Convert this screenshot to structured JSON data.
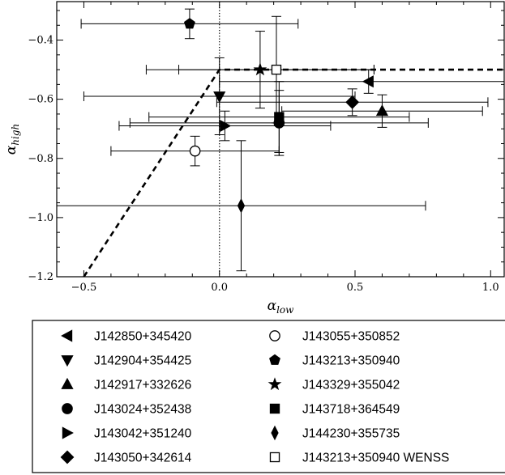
{
  "chart_data": {
    "type": "scatter",
    "title": "",
    "xlabel": "α_low",
    "ylabel": "α_high",
    "xlim": [
      -0.6,
      1.05
    ],
    "ylim": [
      -1.2,
      -0.27
    ],
    "x_ticks": [
      -0.5,
      0.0,
      0.5,
      1.0
    ],
    "x_tick_labels": [
      "−0.5",
      "0.0",
      "0.5",
      "1.0"
    ],
    "y_ticks": [
      -1.2,
      -1.0,
      -0.8,
      -0.6,
      -0.4
    ],
    "y_tick_labels": [
      "−1.2",
      "−1.0",
      "−0.8",
      "−0.6",
      "−0.4"
    ],
    "grid": false,
    "legend_position": "below",
    "reference_lines": [
      {
        "style": "dotted",
        "points": [
          [
            0.0,
            -0.27
          ],
          [
            0.0,
            -1.2
          ]
        ]
      },
      {
        "style": "dashed",
        "points": [
          [
            -0.5,
            -1.2
          ],
          [
            0.0,
            -0.5
          ],
          [
            1.05,
            -0.5
          ]
        ]
      }
    ],
    "series": [
      {
        "name": "J142850+345420",
        "marker": "triangle-left",
        "filled": true,
        "points": [
          {
            "x": 0.55,
            "y": -0.54,
            "xerr": [
              0.55,
              0.55
            ],
            "yerr": [
              0.04,
              0.04
            ]
          }
        ]
      },
      {
        "name": "J142904+354425",
        "marker": "triangle-down",
        "filled": true,
        "points": [
          {
            "x": 0.0,
            "y": -0.59,
            "xerr": [
              0.5,
              0.5
            ],
            "yerr": [
              0.13,
              0.13
            ]
          }
        ]
      },
      {
        "name": "J142917+332626",
        "marker": "triangle-up",
        "filled": true,
        "points": [
          {
            "x": 0.6,
            "y": -0.64,
            "xerr": [
              0.37,
              0.37
            ],
            "yerr": [
              0.055,
              0.055
            ]
          }
        ]
      },
      {
        "name": "J143024+352438",
        "marker": "circle",
        "filled": true,
        "points": [
          {
            "x": 0.22,
            "y": -0.68,
            "xerr": [
              0.55,
              0.55
            ],
            "yerr": [
              0.11,
              0.11
            ]
          }
        ]
      },
      {
        "name": "J143042+351240",
        "marker": "triangle-right",
        "filled": true,
        "points": [
          {
            "x": 0.02,
            "y": -0.69,
            "xerr": [
              0.39,
              0.39
            ],
            "yerr": [
              0.05,
              0.05
            ]
          }
        ]
      },
      {
        "name": "J143050+342614",
        "marker": "diamond",
        "filled": true,
        "points": [
          {
            "x": 0.49,
            "y": -0.61,
            "xerr": [
              0.5,
              0.5
            ],
            "yerr": [
              0.045,
              0.045
            ]
          }
        ]
      },
      {
        "name": "J143055+350852",
        "marker": "circle",
        "filled": false,
        "points": [
          {
            "x": -0.09,
            "y": -0.775,
            "xerr": [
              0.31,
              0.31
            ],
            "yerr": [
              0.05,
              0.05
            ]
          }
        ]
      },
      {
        "name": "J143213+350940",
        "marker": "pentagon",
        "filled": true,
        "points": [
          {
            "x": -0.11,
            "y": -0.345,
            "xerr": [
              0.4,
              0.4
            ],
            "yerr": [
              0.05,
              0.05
            ]
          }
        ]
      },
      {
        "name": "J143329+355042",
        "marker": "star",
        "filled": true,
        "points": [
          {
            "x": 0.15,
            "y": -0.5,
            "xerr": [
              0.42,
              0.42
            ],
            "yerr": [
              0.13,
              0.13
            ]
          }
        ]
      },
      {
        "name": "J143718+364549",
        "marker": "square",
        "filled": true,
        "points": [
          {
            "x": 0.22,
            "y": -0.66,
            "xerr": [
              0.48,
              0.48
            ],
            "yerr": [
              0.12,
              0.12
            ]
          }
        ]
      },
      {
        "name": "J144230+355735",
        "marker": "thin-diamond",
        "filled": true,
        "points": [
          {
            "x": 0.08,
            "y": -0.96,
            "xerr": [
              0.68,
              0.68
            ],
            "yerr": [
              0.22,
              0.22
            ]
          }
        ]
      },
      {
        "name": "J143213+350940 WENSS",
        "marker": "square",
        "filled": false,
        "points": [
          {
            "x": 0.21,
            "y": -0.5,
            "xerr": [
              0.36,
              0.36
            ],
            "yerr": [
              0.18,
              0.18
            ]
          }
        ]
      }
    ]
  }
}
